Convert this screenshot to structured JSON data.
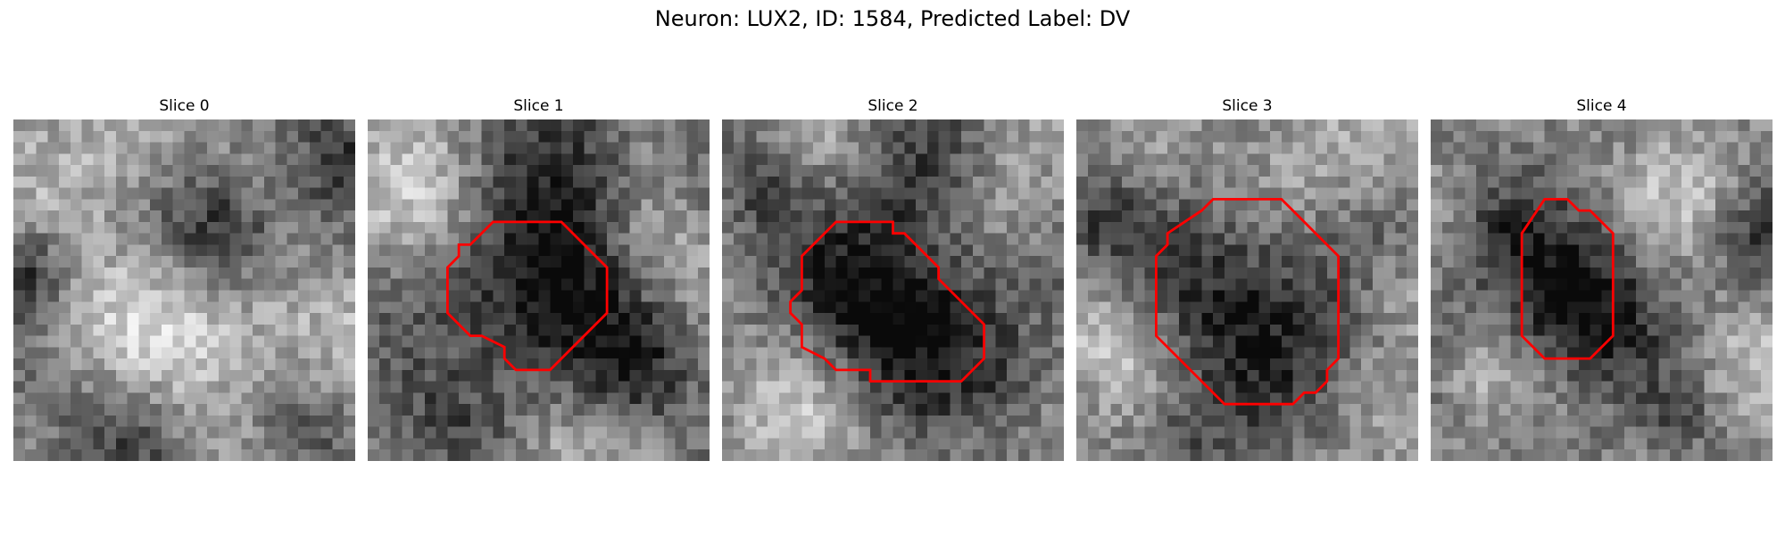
{
  "figure": {
    "title": "Neuron: LUX2, ID: 1584, Predicted Label: DV"
  },
  "colors": {
    "contour": "#ff0000",
    "background": "#ffffff",
    "colormap": "gray"
  },
  "panels": [
    {
      "title": "Slice 0",
      "contour": [],
      "dark_blobs": [
        [
          0.6,
          0.33,
          0.14,
          0.95
        ],
        [
          0.03,
          0.45,
          0.1,
          0.7
        ],
        [
          0.3,
          0.9,
          0.15,
          0.55
        ],
        [
          0.95,
          0.1,
          0.12,
          0.5
        ],
        [
          0.85,
          0.9,
          0.12,
          0.45
        ]
      ],
      "bright_blobs": [
        [
          0.4,
          0.55,
          0.22,
          0.45
        ],
        [
          0.7,
          0.65,
          0.2,
          0.4
        ],
        [
          0.3,
          0.12,
          0.15,
          0.35
        ]
      ],
      "base": 0.55,
      "seed": 11
    },
    {
      "title": "Slice 1",
      "contour": [
        [
          14,
          9
        ],
        [
          17,
          9
        ],
        [
          20,
          12
        ],
        [
          21,
          13
        ],
        [
          21,
          17
        ],
        [
          18,
          20
        ],
        [
          16,
          22
        ],
        [
          13,
          22
        ],
        [
          12,
          21
        ],
        [
          12,
          20
        ],
        [
          10,
          19
        ],
        [
          9,
          19
        ],
        [
          7,
          17
        ],
        [
          7,
          13
        ],
        [
          8,
          12
        ],
        [
          8,
          11
        ],
        [
          9,
          11
        ],
        [
          11,
          9
        ]
      ],
      "dark_blobs": [
        [
          0.5,
          0.5,
          0.2,
          1.0
        ],
        [
          0.6,
          0.12,
          0.15,
          0.5
        ],
        [
          0.8,
          0.75,
          0.12,
          0.45
        ],
        [
          0.2,
          0.9,
          0.12,
          0.4
        ]
      ],
      "bright_blobs": [
        [
          0.2,
          0.25,
          0.18,
          0.5
        ],
        [
          0.85,
          0.4,
          0.12,
          0.45
        ],
        [
          0.55,
          0.95,
          0.12,
          0.4
        ]
      ],
      "base": 0.5,
      "seed": 23
    },
    {
      "title": "Slice 2",
      "contour": [
        [
          10,
          9
        ],
        [
          15,
          9
        ],
        [
          15,
          10
        ],
        [
          16,
          10
        ],
        [
          19,
          13
        ],
        [
          19,
          14
        ],
        [
          23,
          18
        ],
        [
          23,
          21
        ],
        [
          21,
          23
        ],
        [
          13,
          23
        ],
        [
          13,
          22
        ],
        [
          10,
          22
        ],
        [
          9,
          21
        ],
        [
          7,
          20
        ],
        [
          7,
          18
        ],
        [
          6,
          17
        ],
        [
          6,
          16
        ],
        [
          7,
          15
        ],
        [
          7,
          12
        ]
      ],
      "dark_blobs": [
        [
          0.48,
          0.55,
          0.2,
          1.0
        ],
        [
          0.55,
          0.15,
          0.15,
          0.5
        ],
        [
          0.85,
          0.75,
          0.12,
          0.4
        ],
        [
          0.1,
          0.2,
          0.1,
          0.4
        ]
      ],
      "bright_blobs": [
        [
          0.2,
          0.85,
          0.18,
          0.5
        ],
        [
          0.85,
          0.25,
          0.12,
          0.45
        ],
        [
          0.35,
          0.1,
          0.15,
          0.35
        ]
      ],
      "base": 0.5,
      "seed": 37
    },
    {
      "title": "Slice 3",
      "contour": [
        [
          12,
          7
        ],
        [
          18,
          7
        ],
        [
          19,
          8
        ],
        [
          21,
          10
        ],
        [
          23,
          12
        ],
        [
          23,
          21
        ],
        [
          22,
          22
        ],
        [
          22,
          23
        ],
        [
          21,
          24
        ],
        [
          20,
          24
        ],
        [
          19,
          25
        ],
        [
          13,
          25
        ],
        [
          10,
          22
        ],
        [
          7,
          19
        ],
        [
          7,
          12
        ],
        [
          8,
          11
        ],
        [
          8,
          10
        ],
        [
          11,
          8
        ]
      ],
      "dark_blobs": [
        [
          0.52,
          0.55,
          0.22,
          0.85
        ],
        [
          0.05,
          0.3,
          0.1,
          0.5
        ],
        [
          0.3,
          0.95,
          0.12,
          0.4
        ]
      ],
      "bright_blobs": [
        [
          0.1,
          0.65,
          0.12,
          0.5
        ],
        [
          0.65,
          0.1,
          0.15,
          0.35
        ],
        [
          0.95,
          0.5,
          0.1,
          0.35
        ]
      ],
      "base": 0.55,
      "seed": 53
    },
    {
      "title": "Slice 4",
      "contour": [
        [
          10,
          7
        ],
        [
          12,
          7
        ],
        [
          13,
          8
        ],
        [
          14,
          8
        ],
        [
          16,
          10
        ],
        [
          16,
          19
        ],
        [
          14,
          21
        ],
        [
          10,
          21
        ],
        [
          8,
          19
        ],
        [
          8,
          10
        ]
      ],
      "dark_blobs": [
        [
          0.43,
          0.55,
          0.15,
          0.95
        ],
        [
          0.2,
          0.35,
          0.1,
          0.4
        ],
        [
          0.95,
          0.35,
          0.08,
          0.4
        ],
        [
          0.75,
          0.85,
          0.1,
          0.35
        ]
      ],
      "bright_blobs": [
        [
          0.75,
          0.2,
          0.12,
          0.4
        ],
        [
          0.88,
          0.75,
          0.12,
          0.4
        ],
        [
          0.15,
          0.75,
          0.1,
          0.35
        ]
      ],
      "base": 0.5,
      "seed": 71
    }
  ]
}
